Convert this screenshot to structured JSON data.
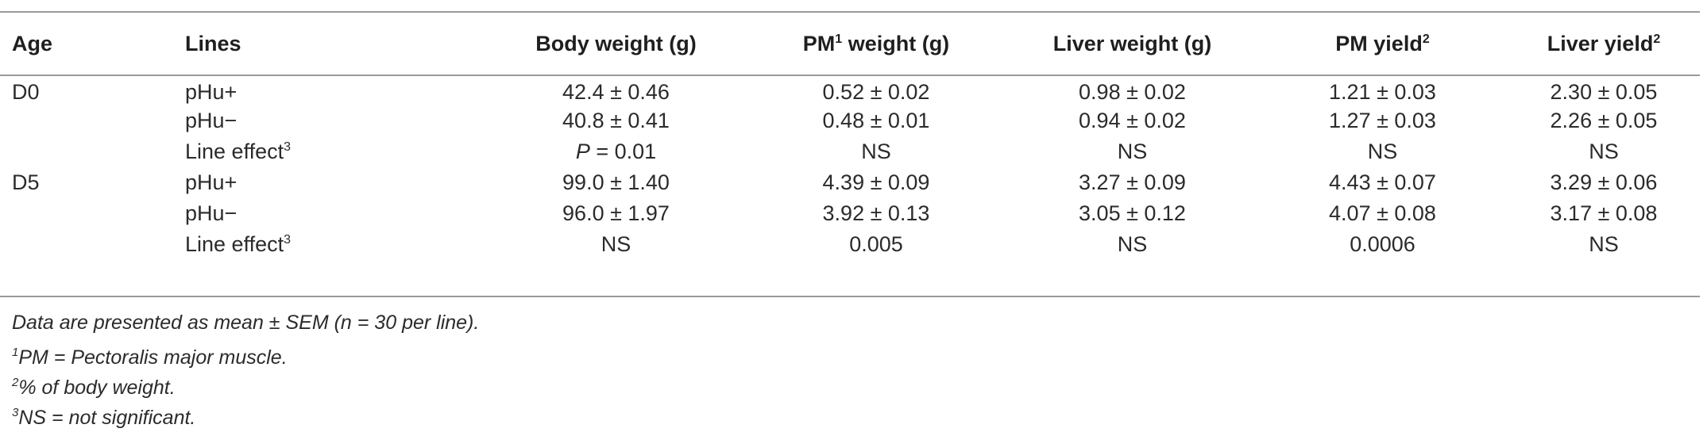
{
  "table": {
    "headers": {
      "age": "Age",
      "lines": "Lines",
      "body_weight": "Body weight (g)",
      "pm_weight_pre": "PM",
      "pm_weight_sup": "1",
      "pm_weight_post": " weight (g)",
      "liver_weight": "Liver weight (g)",
      "pm_yield_pre": "PM yield",
      "pm_yield_sup": "2",
      "liver_yield_pre": "Liver yield",
      "liver_yield_sup": "2"
    },
    "rows": [
      {
        "age": "D0",
        "line": "pHu+",
        "line_sup": "",
        "bw": "42.4 ± 0.46",
        "pmw": "0.52 ± 0.02",
        "lw": "0.98 ± 0.02",
        "pmy": "1.21 ± 0.03",
        "ly": "2.30 ± 0.05"
      },
      {
        "age": "",
        "line": "pHu−",
        "line_sup": "",
        "bw": "40.8 ± 0.41",
        "pmw": "0.48 ± 0.01",
        "lw": "0.94 ± 0.02",
        "pmy": "1.27 ± 0.03",
        "ly": "2.26 ± 0.05"
      },
      {
        "age": "",
        "line": "Line effect",
        "line_sup": "3",
        "bw_p": "P",
        "bw": " = 0.01",
        "pmw": "NS",
        "lw": "NS",
        "pmy": "NS",
        "ly": "NS"
      },
      {
        "age": "D5",
        "line": "pHu+",
        "line_sup": "",
        "bw": "99.0 ± 1.40",
        "pmw": "4.39 ± 0.09",
        "lw": "3.27 ± 0.09",
        "pmy": "4.43 ± 0.07",
        "ly": "3.29 ± 0.06"
      },
      {
        "age": "",
        "line": "pHu−",
        "line_sup": "",
        "bw": "96.0 ± 1.97",
        "pmw": "3.92 ± 0.13",
        "lw": "3.05 ± 0.12",
        "pmy": "4.07 ± 0.08",
        "ly": "3.17 ± 0.08"
      },
      {
        "age": "",
        "line": "Line effect",
        "line_sup": "3",
        "bw": "NS",
        "pmw": "0.005",
        "lw": "NS",
        "pmy": "0.0006",
        "ly": "NS"
      }
    ]
  },
  "notes": {
    "n0": "Data are presented as mean ± SEM (n = 30 per line).",
    "n1_sup": "1",
    "n1": "PM = Pectoralis major muscle.",
    "n2_sup": "2",
    "n2": "% of body weight.",
    "n3_sup": "3",
    "n3": "NS = not significant."
  }
}
